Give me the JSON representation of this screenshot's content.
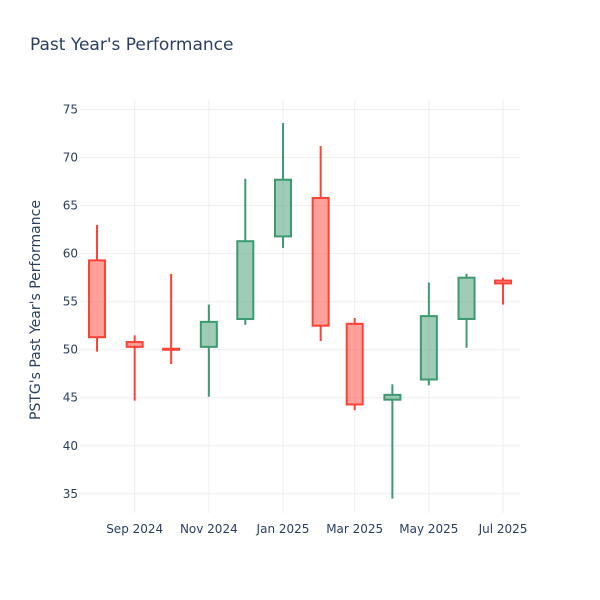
{
  "chart_data": {
    "type": "candlestick",
    "title": "Past Year's Performance",
    "xlabel": "",
    "ylabel": "PSTG's Past Year's Performance",
    "ylim": [
      33,
      76
    ],
    "y_ticks": [
      35,
      40,
      45,
      50,
      55,
      60,
      65,
      70,
      75
    ],
    "x_ticks": [
      "Sep 2024",
      "Nov 2024",
      "Jan 2025",
      "Mar 2025",
      "May 2025",
      "Jul 2025"
    ],
    "grid": true,
    "colors": {
      "increasing": "#3d9970",
      "decreasing": "#ff4136"
    },
    "series": [
      {
        "date": "2024-08",
        "open": 59.3,
        "high": 63.0,
        "low": 49.8,
        "close": 51.3
      },
      {
        "date": "2024-09",
        "open": 50.8,
        "high": 51.5,
        "low": 44.7,
        "close": 50.3
      },
      {
        "date": "2024-10",
        "open": 50.1,
        "high": 57.9,
        "low": 48.5,
        "close": 50.0
      },
      {
        "date": "2024-11",
        "open": 50.3,
        "high": 54.7,
        "low": 45.1,
        "close": 52.9
      },
      {
        "date": "2024-12",
        "open": 53.2,
        "high": 67.8,
        "low": 52.6,
        "close": 61.3
      },
      {
        "date": "2025-01",
        "open": 61.8,
        "high": 73.6,
        "low": 60.6,
        "close": 67.7
      },
      {
        "date": "2025-02",
        "open": 65.8,
        "high": 71.2,
        "low": 50.9,
        "close": 52.5
      },
      {
        "date": "2025-03",
        "open": 52.7,
        "high": 53.3,
        "low": 43.7,
        "close": 44.3
      },
      {
        "date": "2025-04",
        "open": 44.8,
        "high": 46.4,
        "low": 34.5,
        "close": 45.3
      },
      {
        "date": "2025-05",
        "open": 46.9,
        "high": 57.0,
        "low": 46.3,
        "close": 53.5
      },
      {
        "date": "2025-06",
        "open": 53.2,
        "high": 57.9,
        "low": 50.2,
        "close": 57.5
      },
      {
        "date": "2025-07",
        "open": 57.2,
        "high": 57.5,
        "low": 54.7,
        "close": 56.9
      }
    ]
  }
}
